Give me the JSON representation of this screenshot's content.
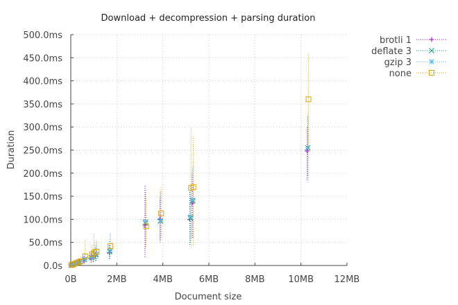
{
  "chart_data": {
    "type": "scatter",
    "title": "Download + decompression + parsing duration",
    "xlabel": "Document size",
    "ylabel": "Duration",
    "x_unit": "MB",
    "y_unit": "ms",
    "xlim": [
      0,
      12
    ],
    "ylim": [
      0,
      500
    ],
    "x_ticks": [
      0,
      2,
      4,
      6,
      8,
      10,
      12
    ],
    "x_tick_labels": [
      "0B",
      "2MB",
      "4MB",
      "6MB",
      "8MB",
      "10MB",
      "12MB"
    ],
    "y_ticks": [
      0,
      50,
      100,
      150,
      200,
      250,
      300,
      350,
      400,
      450,
      500
    ],
    "y_tick_labels": [
      "0.0s",
      "50.0ms",
      "100.0ms",
      "150.0ms",
      "200.0ms",
      "250.0ms",
      "300.0ms",
      "350.0ms",
      "400.0ms",
      "450.0ms",
      "500.0ms"
    ],
    "grid": true,
    "legend_position": "top-right-outside",
    "error_bars": true,
    "series": [
      {
        "name": "brotli 1",
        "color": "#9400d3",
        "marker": "plus",
        "points": [
          {
            "x": 0.02,
            "y": 1,
            "lo": 0,
            "hi": 3
          },
          {
            "x": 0.1,
            "y": 2,
            "lo": 0,
            "hi": 5
          },
          {
            "x": 0.2,
            "y": 4,
            "lo": 1,
            "hi": 8
          },
          {
            "x": 0.3,
            "y": 6,
            "lo": 2,
            "hi": 10
          },
          {
            "x": 0.4,
            "y": 8,
            "lo": 3,
            "hi": 14
          },
          {
            "x": 0.6,
            "y": 12,
            "lo": 5,
            "hi": 22
          },
          {
            "x": 0.9,
            "y": 16,
            "lo": 7,
            "hi": 30
          },
          {
            "x": 1.0,
            "y": 18,
            "lo": 8,
            "hi": 35
          },
          {
            "x": 1.1,
            "y": 22,
            "lo": 10,
            "hi": 40
          },
          {
            "x": 1.7,
            "y": 28,
            "lo": 15,
            "hi": 50
          },
          {
            "x": 3.25,
            "y": 88,
            "lo": 18,
            "hi": 175
          },
          {
            "x": 3.9,
            "y": 100,
            "lo": 55,
            "hi": 150
          },
          {
            "x": 5.2,
            "y": 100,
            "lo": 45,
            "hi": 160
          },
          {
            "x": 5.3,
            "y": 135,
            "lo": 60,
            "hi": 200
          },
          {
            "x": 10.3,
            "y": 248,
            "lo": 185,
            "hi": 300
          }
        ]
      },
      {
        "name": "deflate 3",
        "color": "#009e73",
        "marker": "cross",
        "points": [
          {
            "x": 0.02,
            "y": 1,
            "lo": 0,
            "hi": 3
          },
          {
            "x": 0.1,
            "y": 2,
            "lo": 0,
            "hi": 5
          },
          {
            "x": 0.2,
            "y": 4,
            "lo": 1,
            "hi": 8
          },
          {
            "x": 0.3,
            "y": 6,
            "lo": 2,
            "hi": 11
          },
          {
            "x": 0.4,
            "y": 8,
            "lo": 3,
            "hi": 15
          },
          {
            "x": 0.6,
            "y": 13,
            "lo": 5,
            "hi": 24
          },
          {
            "x": 0.9,
            "y": 17,
            "lo": 7,
            "hi": 32
          },
          {
            "x": 1.0,
            "y": 19,
            "lo": 8,
            "hi": 38
          },
          {
            "x": 1.1,
            "y": 23,
            "lo": 10,
            "hi": 45
          },
          {
            "x": 1.7,
            "y": 30,
            "lo": 15,
            "hi": 55
          },
          {
            "x": 3.25,
            "y": 92,
            "lo": 40,
            "hi": 160
          },
          {
            "x": 3.9,
            "y": 96,
            "lo": 50,
            "hi": 160
          },
          {
            "x": 5.2,
            "y": 103,
            "lo": 50,
            "hi": 170
          },
          {
            "x": 5.3,
            "y": 140,
            "lo": 60,
            "hi": 210
          },
          {
            "x": 10.3,
            "y": 255,
            "lo": 195,
            "hi": 325
          }
        ]
      },
      {
        "name": "gzip 3",
        "color": "#56b4e9",
        "marker": "star",
        "points": [
          {
            "x": 0.02,
            "y": 1,
            "lo": 0,
            "hi": 3
          },
          {
            "x": 0.1,
            "y": 2,
            "lo": 0,
            "hi": 5
          },
          {
            "x": 0.2,
            "y": 4,
            "lo": 1,
            "hi": 8
          },
          {
            "x": 0.3,
            "y": 6,
            "lo": 2,
            "hi": 11
          },
          {
            "x": 0.4,
            "y": 8,
            "lo": 3,
            "hi": 15
          },
          {
            "x": 0.6,
            "y": 13,
            "lo": 5,
            "hi": 25
          },
          {
            "x": 0.9,
            "y": 17,
            "lo": 6,
            "hi": 35
          },
          {
            "x": 1.0,
            "y": 20,
            "lo": 8,
            "hi": 70
          },
          {
            "x": 1.1,
            "y": 24,
            "lo": 10,
            "hi": 55
          },
          {
            "x": 1.7,
            "y": 32,
            "lo": 15,
            "hi": 70
          },
          {
            "x": 3.25,
            "y": 95,
            "lo": 45,
            "hi": 165
          },
          {
            "x": 3.9,
            "y": 98,
            "lo": 55,
            "hi": 160
          },
          {
            "x": 5.2,
            "y": 105,
            "lo": 50,
            "hi": 175
          },
          {
            "x": 5.3,
            "y": 142,
            "lo": 60,
            "hi": 215
          },
          {
            "x": 10.3,
            "y": 255,
            "lo": 180,
            "hi": 330
          }
        ]
      },
      {
        "name": "none",
        "color": "#e69f00",
        "marker": "square",
        "points": [
          {
            "x": 0.02,
            "y": 1,
            "lo": 0,
            "hi": 4
          },
          {
            "x": 0.1,
            "y": 3,
            "lo": 0,
            "hi": 7
          },
          {
            "x": 0.2,
            "y": 5,
            "lo": 1,
            "hi": 10
          },
          {
            "x": 0.3,
            "y": 7,
            "lo": 2,
            "hi": 14
          },
          {
            "x": 0.4,
            "y": 9,
            "lo": 3,
            "hi": 18
          },
          {
            "x": 0.6,
            "y": 20,
            "lo": 8,
            "hi": 55
          },
          {
            "x": 0.9,
            "y": 24,
            "lo": 10,
            "hi": 45
          },
          {
            "x": 1.0,
            "y": 28,
            "lo": 12,
            "hi": 50
          },
          {
            "x": 1.1,
            "y": 30,
            "lo": 14,
            "hi": 55
          },
          {
            "x": 1.7,
            "y": 42,
            "lo": 20,
            "hi": 70
          },
          {
            "x": 3.25,
            "y": 85,
            "lo": 40,
            "hi": 150
          },
          {
            "x": 3.9,
            "y": 113,
            "lo": 60,
            "hi": 170
          },
          {
            "x": 5.2,
            "y": 168,
            "lo": 40,
            "hi": 300
          },
          {
            "x": 5.3,
            "y": 170,
            "lo": 45,
            "hi": 280
          },
          {
            "x": 10.3,
            "y": 360,
            "lo": 250,
            "hi": 460
          }
        ]
      }
    ]
  }
}
